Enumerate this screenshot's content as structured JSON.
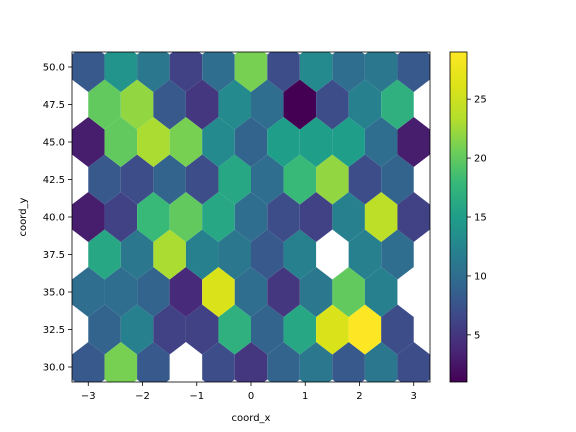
{
  "chart_data": {
    "type": "hexbin",
    "title": "",
    "xlabel": "coord_x",
    "ylabel": "coord_y",
    "xlim": [
      -3.3,
      3.3
    ],
    "ylim": [
      29.0,
      51.0
    ],
    "xticks": [
      -3,
      -2,
      -1,
      0,
      1,
      2,
      3
    ],
    "yticks": [
      30.0,
      32.5,
      35.0,
      37.5,
      40.0,
      42.5,
      45.0,
      47.5,
      50.0
    ],
    "ytick_labels": [
      "30.0",
      "32.5",
      "35.0",
      "37.5",
      "40.0",
      "42.5",
      "45.0",
      "47.5",
      "50.0"
    ],
    "colorbar": {
      "colormap": "viridis",
      "range": [
        1,
        29
      ],
      "ticks": [
        5,
        10,
        15,
        20,
        25
      ]
    },
    "cells": [
      {
        "x": -3,
        "y": 30.0,
        "count": 8
      },
      {
        "x": -2.4,
        "y": 30.0,
        "count": 21
      },
      {
        "x": -1.8,
        "y": 30.0,
        "count": 8
      },
      {
        "x": -0.6,
        "y": 30.0,
        "count": 7
      },
      {
        "x": 0.0,
        "y": 30.0,
        "count": 5
      },
      {
        "x": 0.6,
        "y": 30.0,
        "count": 9
      },
      {
        "x": 1.2,
        "y": 30.0,
        "count": 11
      },
      {
        "x": 1.8,
        "y": 30.0,
        "count": 8
      },
      {
        "x": 2.4,
        "y": 30.0,
        "count": 11
      },
      {
        "x": 3.0,
        "y": 30.0,
        "count": 7
      },
      {
        "x": -2.7,
        "y": 32.5,
        "count": 9
      },
      {
        "x": -2.1,
        "y": 32.5,
        "count": 12
      },
      {
        "x": -1.5,
        "y": 32.5,
        "count": 6
      },
      {
        "x": -0.9,
        "y": 32.5,
        "count": 6
      },
      {
        "x": -0.3,
        "y": 32.5,
        "count": 17
      },
      {
        "x": 0.3,
        "y": 32.5,
        "count": 9
      },
      {
        "x": 0.9,
        "y": 32.5,
        "count": 16
      },
      {
        "x": 1.5,
        "y": 32.5,
        "count": 26
      },
      {
        "x": 2.1,
        "y": 32.5,
        "count": 29
      },
      {
        "x": 2.7,
        "y": 32.5,
        "count": 7
      },
      {
        "x": -3,
        "y": 35.0,
        "count": 10
      },
      {
        "x": -2.4,
        "y": 35.0,
        "count": 10
      },
      {
        "x": -1.8,
        "y": 35.0,
        "count": 9
      },
      {
        "x": -1.2,
        "y": 35.0,
        "count": 4
      },
      {
        "x": -0.6,
        "y": 35.0,
        "count": 26
      },
      {
        "x": 0.0,
        "y": 35.0,
        "count": 10
      },
      {
        "x": 0.6,
        "y": 35.0,
        "count": 5
      },
      {
        "x": 1.2,
        "y": 35.0,
        "count": 11
      },
      {
        "x": 1.8,
        "y": 35.0,
        "count": 20
      },
      {
        "x": 2.4,
        "y": 35.0,
        "count": 12
      },
      {
        "x": -2.7,
        "y": 37.5,
        "count": 16
      },
      {
        "x": -2.1,
        "y": 37.5,
        "count": 11
      },
      {
        "x": -1.5,
        "y": 37.5,
        "count": 23
      },
      {
        "x": -0.9,
        "y": 37.5,
        "count": 12
      },
      {
        "x": -0.3,
        "y": 37.5,
        "count": 11
      },
      {
        "x": 0.3,
        "y": 37.5,
        "count": 8
      },
      {
        "x": 0.9,
        "y": 37.5,
        "count": 12
      },
      {
        "x": 2.1,
        "y": 37.5,
        "count": 12
      },
      {
        "x": 2.7,
        "y": 37.5,
        "count": 10
      },
      {
        "x": -3,
        "y": 40.0,
        "count": 3
      },
      {
        "x": -2.4,
        "y": 40.0,
        "count": 6
      },
      {
        "x": -1.8,
        "y": 40.0,
        "count": 18
      },
      {
        "x": -1.2,
        "y": 40.0,
        "count": 20
      },
      {
        "x": -0.6,
        "y": 40.0,
        "count": 16
      },
      {
        "x": 0.0,
        "y": 40.0,
        "count": 10
      },
      {
        "x": 0.6,
        "y": 40.0,
        "count": 7
      },
      {
        "x": 1.2,
        "y": 40.0,
        "count": 6
      },
      {
        "x": 1.8,
        "y": 40.0,
        "count": 12
      },
      {
        "x": 2.4,
        "y": 40.0,
        "count": 24
      },
      {
        "x": 3.0,
        "y": 40.0,
        "count": 6
      },
      {
        "x": -2.7,
        "y": 42.5,
        "count": 8
      },
      {
        "x": -2.1,
        "y": 42.5,
        "count": 7
      },
      {
        "x": -1.5,
        "y": 42.5,
        "count": 9
      },
      {
        "x": -0.9,
        "y": 42.5,
        "count": 7
      },
      {
        "x": -0.3,
        "y": 42.5,
        "count": 16
      },
      {
        "x": 0.3,
        "y": 42.5,
        "count": 10
      },
      {
        "x": 0.9,
        "y": 42.5,
        "count": 18
      },
      {
        "x": 1.5,
        "y": 42.5,
        "count": 22
      },
      {
        "x": 2.1,
        "y": 42.5,
        "count": 7
      },
      {
        "x": 2.7,
        "y": 42.5,
        "count": 9
      },
      {
        "x": -3,
        "y": 45.0,
        "count": 3
      },
      {
        "x": -2.4,
        "y": 45.0,
        "count": 20
      },
      {
        "x": -1.8,
        "y": 45.0,
        "count": 23
      },
      {
        "x": -1.2,
        "y": 45.0,
        "count": 21
      },
      {
        "x": -0.6,
        "y": 45.0,
        "count": 13
      },
      {
        "x": 0.0,
        "y": 45.0,
        "count": 9
      },
      {
        "x": 0.6,
        "y": 45.0,
        "count": 15
      },
      {
        "x": 1.2,
        "y": 45.0,
        "count": 15
      },
      {
        "x": 1.8,
        "y": 45.0,
        "count": 15
      },
      {
        "x": 2.4,
        "y": 45.0,
        "count": 10
      },
      {
        "x": 3.0,
        "y": 45.0,
        "count": 3
      },
      {
        "x": -2.7,
        "y": 47.5,
        "count": 20
      },
      {
        "x": -2.1,
        "y": 47.5,
        "count": 22
      },
      {
        "x": -1.5,
        "y": 47.5,
        "count": 8
      },
      {
        "x": -0.9,
        "y": 47.5,
        "count": 5
      },
      {
        "x": -0.3,
        "y": 47.5,
        "count": 13
      },
      {
        "x": 0.3,
        "y": 47.5,
        "count": 10
      },
      {
        "x": 0.9,
        "y": 47.5,
        "count": 1
      },
      {
        "x": 1.5,
        "y": 47.5,
        "count": 7
      },
      {
        "x": 2.1,
        "y": 47.5,
        "count": 12
      },
      {
        "x": 2.7,
        "y": 47.5,
        "count": 17
      },
      {
        "x": -3,
        "y": 50.0,
        "count": 8
      },
      {
        "x": -2.4,
        "y": 50.0,
        "count": 14
      },
      {
        "x": -1.8,
        "y": 50.0,
        "count": 11
      },
      {
        "x": -1.2,
        "y": 50.0,
        "count": 6
      },
      {
        "x": -0.6,
        "y": 50.0,
        "count": 10
      },
      {
        "x": 0.0,
        "y": 50.0,
        "count": 21
      },
      {
        "x": 0.6,
        "y": 50.0,
        "count": 7
      },
      {
        "x": 1.2,
        "y": 50.0,
        "count": 13
      },
      {
        "x": 1.8,
        "y": 50.0,
        "count": 10
      },
      {
        "x": 2.4,
        "y": 50.0,
        "count": 11
      },
      {
        "x": 3.0,
        "y": 50.0,
        "count": 8
      }
    ]
  }
}
